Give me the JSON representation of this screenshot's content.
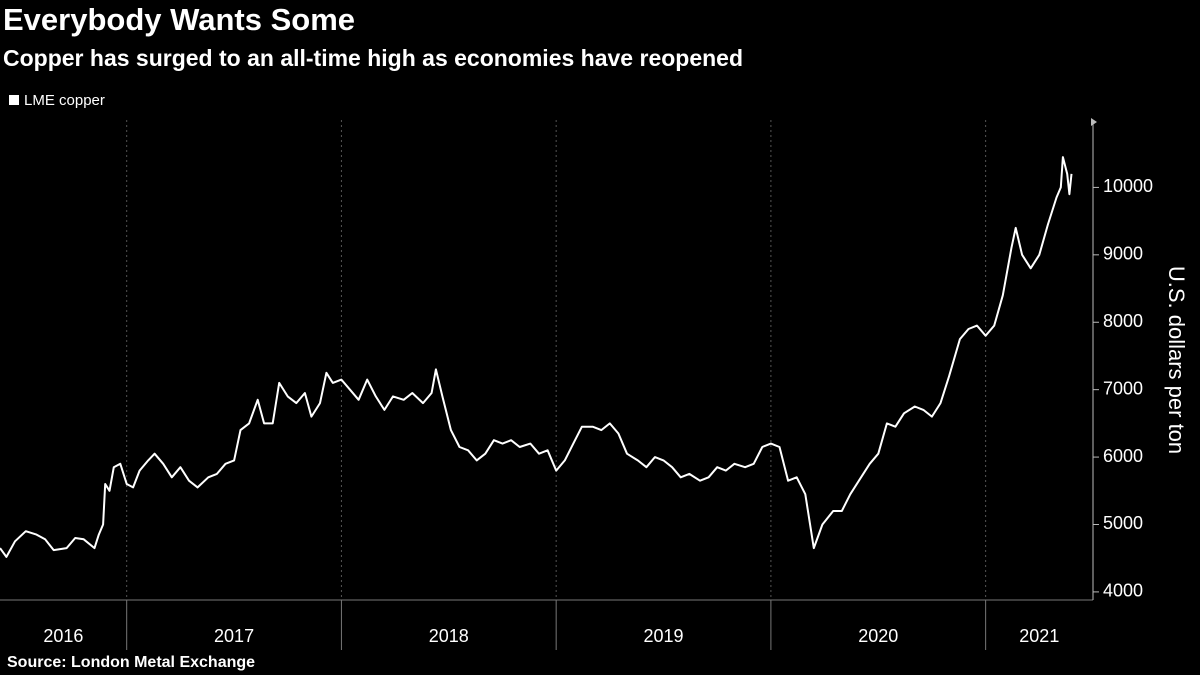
{
  "chart_data": {
    "type": "line",
    "title": "Everybody Wants Some",
    "subtitle": "Copper has surged to an all-time high as economies have reopened",
    "y_label": "U.S. dollars per ton",
    "source": "Source: London Metal Exchange",
    "x": [
      2016.41,
      2016.44,
      2016.48,
      2016.53,
      2016.58,
      2016.62,
      2016.66,
      2016.72,
      2016.76,
      2016.8,
      2016.85,
      2016.87,
      2016.89,
      2016.9,
      2016.92,
      2016.94,
      2016.97,
      2017.0,
      2017.03,
      2017.06,
      2017.1,
      2017.13,
      2017.17,
      2017.21,
      2017.25,
      2017.29,
      2017.33,
      2017.38,
      2017.42,
      2017.46,
      2017.5,
      2017.53,
      2017.57,
      2017.61,
      2017.64,
      2017.68,
      2017.71,
      2017.75,
      2017.79,
      2017.83,
      2017.86,
      2017.9,
      2017.93,
      2017.96,
      2018.0,
      2018.04,
      2018.08,
      2018.12,
      2018.16,
      2018.2,
      2018.24,
      2018.29,
      2018.33,
      2018.38,
      2018.42,
      2018.44,
      2018.47,
      2018.51,
      2018.55,
      2018.59,
      2018.63,
      2018.67,
      2018.71,
      2018.75,
      2018.79,
      2018.83,
      2018.88,
      2018.92,
      2018.96,
      2019.0,
      2019.04,
      2019.08,
      2019.12,
      2019.17,
      2019.21,
      2019.25,
      2019.29,
      2019.33,
      2019.38,
      2019.42,
      2019.46,
      2019.5,
      2019.54,
      2019.58,
      2019.62,
      2019.67,
      2019.71,
      2019.75,
      2019.79,
      2019.83,
      2019.88,
      2019.92,
      2019.96,
      2020.0,
      2020.04,
      2020.08,
      2020.12,
      2020.16,
      2020.2,
      2020.24,
      2020.29,
      2020.33,
      2020.37,
      2020.41,
      2020.46,
      2020.5,
      2020.54,
      2020.58,
      2020.62,
      2020.67,
      2020.71,
      2020.75,
      2020.79,
      2020.83,
      2020.88,
      2020.92,
      2020.96,
      2021.0,
      2021.04,
      2021.08,
      2021.12,
      2021.14,
      2021.17,
      2021.21,
      2021.25,
      2021.29,
      2021.33,
      2021.35,
      2021.36,
      2021.38,
      2021.39,
      2021.4
    ],
    "series": [
      {
        "name": "LME copper",
        "color": "#ffffff",
        "values": [
          4650,
          4520,
          4750,
          4900,
          4850,
          4780,
          4620,
          4650,
          4800,
          4780,
          4650,
          4850,
          5000,
          5600,
          5500,
          5850,
          5900,
          5600,
          5550,
          5800,
          5950,
          6050,
          5900,
          5700,
          5850,
          5650,
          5550,
          5700,
          5750,
          5900,
          5950,
          6400,
          6500,
          6850,
          6500,
          6500,
          7100,
          6900,
          6800,
          6950,
          6600,
          6800,
          7250,
          7100,
          7150,
          7000,
          6850,
          7150,
          6900,
          6700,
          6900,
          6850,
          6950,
          6800,
          6950,
          7300,
          6900,
          6400,
          6150,
          6100,
          5950,
          6050,
          6250,
          6200,
          6250,
          6150,
          6200,
          6050,
          6100,
          5800,
          5950,
          6200,
          6450,
          6450,
          6400,
          6500,
          6350,
          6050,
          5950,
          5850,
          6000,
          5950,
          5850,
          5700,
          5750,
          5650,
          5700,
          5850,
          5800,
          5900,
          5850,
          5900,
          6150,
          6200,
          6150,
          5650,
          5700,
          5450,
          4650,
          5000,
          5200,
          5200,
          5450,
          5650,
          5900,
          6050,
          6500,
          6450,
          6650,
          6750,
          6700,
          6600,
          6800,
          7200,
          7750,
          7900,
          7950,
          7800,
          7950,
          8400,
          9100,
          9400,
          9000,
          8800,
          9000,
          9450,
          9850,
          10000,
          10450,
          10200,
          9900,
          10200
        ]
      }
    ],
    "xlim": [
      2016.41,
      2021.5
    ],
    "xticks": [
      2016,
      2017,
      2018,
      2019,
      2020,
      2021
    ],
    "ylim": [
      3880,
      11000
    ],
    "yticks": [
      4000,
      5000,
      6000,
      7000,
      8000,
      9000,
      10000
    ],
    "grid": true,
    "background": "#000000"
  }
}
